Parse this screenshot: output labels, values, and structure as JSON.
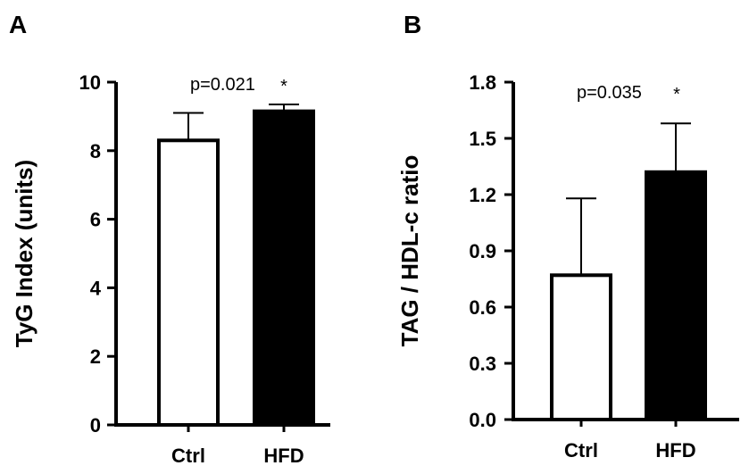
{
  "chart_data": [
    {
      "panel": "A",
      "type": "bar",
      "ylabel": "TyG Index (units)",
      "categories": [
        "Ctrl",
        "HFD"
      ],
      "values": [
        8.3,
        9.15
      ],
      "errors": [
        0.8,
        0.2
      ],
      "fills": [
        "#ffffff",
        "#000000"
      ],
      "ylim": [
        0,
        10
      ],
      "yticks": [
        0,
        2,
        4,
        6,
        8,
        10
      ],
      "ytick_labels": [
        "0",
        "2",
        "4",
        "6",
        "8",
        "10"
      ],
      "annotation": {
        "text": "p=0.021",
        "marker": "*"
      }
    },
    {
      "panel": "B",
      "type": "bar",
      "ylabel": "TAG / HDL-c ratio",
      "categories": [
        "Ctrl",
        "HFD"
      ],
      "values": [
        0.77,
        1.32
      ],
      "errors": [
        0.41,
        0.26
      ],
      "fills": [
        "#ffffff",
        "#000000"
      ],
      "ylim": [
        0,
        1.8
      ],
      "yticks": [
        0,
        0.3,
        0.6,
        0.9,
        1.2,
        1.5,
        1.8
      ],
      "ytick_labels": [
        "0.0",
        "0.3",
        "0.6",
        "0.9",
        "1.2",
        "1.5",
        "1.8"
      ],
      "annotation": {
        "text": "p=0.035",
        "marker": "*"
      }
    }
  ]
}
